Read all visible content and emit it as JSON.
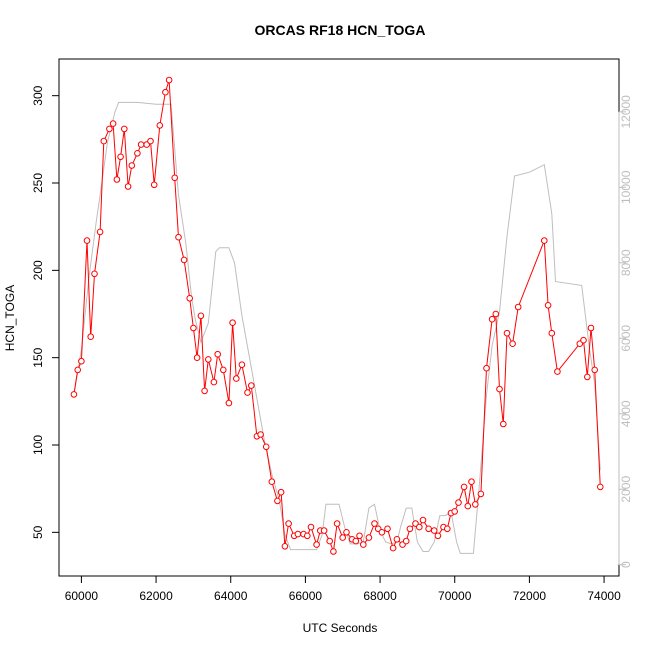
{
  "chart_data": {
    "type": "line",
    "title": "ORCAS RF18 HCN_TOGA",
    "xlabel": "UTC Seconds",
    "ylabel": "HCN_TOGA",
    "xlim": [
      59400,
      74400
    ],
    "ylim": [
      25,
      321
    ],
    "y2lim": [
      -300,
      13400
    ],
    "xticks": [
      60000,
      62000,
      64000,
      66000,
      68000,
      70000,
      72000,
      74000
    ],
    "yticks": [
      50,
      100,
      150,
      200,
      250,
      300
    ],
    "y2ticks": [
      0,
      2000,
      4000,
      6000,
      8000,
      10000,
      12000
    ],
    "colors": {
      "primary": "#ff0000",
      "secondary": "#bebebe",
      "marker_fill": "#ffffff"
    },
    "series": [
      {
        "axis": "left",
        "style": "line+points",
        "points": [
          [
            59800,
            129
          ],
          [
            59900,
            143
          ],
          [
            60000,
            148
          ],
          [
            60150,
            217
          ],
          [
            60250,
            162
          ],
          [
            60350,
            198
          ],
          [
            60500,
            222
          ],
          [
            60600,
            274
          ],
          [
            60750,
            281
          ],
          [
            60850,
            284
          ],
          [
            60950,
            252
          ],
          [
            61050,
            265
          ],
          [
            61150,
            281
          ],
          [
            61250,
            248
          ],
          [
            61350,
            260
          ],
          [
            61500,
            267
          ],
          [
            61600,
            272
          ],
          [
            61750,
            272
          ],
          [
            61850,
            274
          ],
          [
            61950,
            249
          ],
          [
            62100,
            283
          ],
          [
            62250,
            302
          ],
          [
            62350,
            309
          ],
          [
            62500,
            253
          ],
          [
            62600,
            219
          ],
          [
            62750,
            206
          ],
          [
            62900,
            184
          ],
          [
            63000,
            167
          ],
          [
            63100,
            150
          ],
          [
            63200,
            174
          ],
          [
            63300,
            131
          ],
          [
            63400,
            149
          ],
          [
            63550,
            136
          ],
          [
            63650,
            152
          ],
          [
            63800,
            143
          ],
          [
            63950,
            124
          ],
          [
            64050,
            170
          ],
          [
            64150,
            138
          ],
          [
            64300,
            146
          ],
          [
            64450,
            130
          ],
          [
            64550,
            134
          ],
          [
            64700,
            105
          ],
          [
            64800,
            106
          ],
          [
            64950,
            99
          ],
          [
            65100,
            79
          ],
          [
            65250,
            68
          ],
          [
            65350,
            73
          ],
          [
            65450,
            42
          ],
          [
            65550,
            55
          ],
          [
            65700,
            48
          ],
          [
            65800,
            49
          ],
          [
            65950,
            49
          ],
          [
            66050,
            48
          ],
          [
            66150,
            53
          ],
          [
            66300,
            43
          ],
          [
            66400,
            51
          ],
          [
            66500,
            51
          ],
          [
            66650,
            45
          ],
          [
            66750,
            39
          ],
          [
            66850,
            55
          ],
          [
            67000,
            47
          ],
          [
            67100,
            50
          ],
          [
            67250,
            46
          ],
          [
            67350,
            45
          ],
          [
            67450,
            48
          ],
          [
            67550,
            43
          ],
          [
            67700,
            47
          ],
          [
            67850,
            55
          ],
          [
            67950,
            52
          ],
          [
            68050,
            50
          ],
          [
            68200,
            52
          ],
          [
            68350,
            41
          ],
          [
            68450,
            46
          ],
          [
            68600,
            43
          ],
          [
            68700,
            45
          ],
          [
            68800,
            52
          ],
          [
            68950,
            55
          ],
          [
            69050,
            53
          ],
          [
            69150,
            57
          ],
          [
            69300,
            52
          ],
          [
            69450,
            51
          ],
          [
            69550,
            48
          ],
          [
            69700,
            53
          ],
          [
            69800,
            52
          ],
          [
            69900,
            61
          ],
          [
            70000,
            62
          ],
          [
            70100,
            67
          ],
          [
            70250,
            76
          ],
          [
            70350,
            65
          ],
          [
            70450,
            79
          ],
          [
            70550,
            66
          ],
          [
            70700,
            72
          ],
          [
            70850,
            144
          ],
          [
            71000,
            172
          ],
          [
            71100,
            175
          ],
          [
            71200,
            132
          ],
          [
            71300,
            112
          ],
          [
            71400,
            164
          ],
          [
            71550,
            158
          ],
          [
            71700,
            179
          ],
          [
            72400,
            217
          ],
          [
            72500,
            180
          ],
          [
            72600,
            164
          ],
          [
            72750,
            142
          ],
          [
            73350,
            158
          ],
          [
            73450,
            160
          ],
          [
            73550,
            139
          ],
          [
            73650,
            167
          ],
          [
            73750,
            143
          ],
          [
            73900,
            76
          ]
        ]
      },
      {
        "axis": "right",
        "style": "line",
        "points": [
          [
            59800,
            4500
          ],
          [
            60000,
            5700
          ],
          [
            60200,
            7600
          ],
          [
            60400,
            9100
          ],
          [
            60500,
            9800
          ],
          [
            60700,
            11200
          ],
          [
            60900,
            12000
          ],
          [
            61000,
            12250
          ],
          [
            61500,
            12250
          ],
          [
            62000,
            12200
          ],
          [
            62400,
            12200
          ],
          [
            62600,
            9800
          ],
          [
            62800,
            8500
          ],
          [
            62950,
            7100
          ],
          [
            63050,
            6500
          ],
          [
            63200,
            5900
          ],
          [
            63400,
            6400
          ],
          [
            63600,
            8300
          ],
          [
            63700,
            8400
          ],
          [
            63950,
            8400
          ],
          [
            64100,
            8000
          ],
          [
            64300,
            6600
          ],
          [
            64500,
            5500
          ],
          [
            64700,
            4400
          ],
          [
            64900,
            3300
          ],
          [
            65100,
            2400
          ],
          [
            65300,
            1700
          ],
          [
            65450,
            800
          ],
          [
            65600,
            400
          ],
          [
            65800,
            400
          ],
          [
            66000,
            400
          ],
          [
            66200,
            400
          ],
          [
            66300,
            400
          ],
          [
            66450,
            800
          ],
          [
            66550,
            1600
          ],
          [
            66700,
            1600
          ],
          [
            66900,
            1600
          ],
          [
            67050,
            1000
          ],
          [
            67200,
            550
          ],
          [
            67400,
            550
          ],
          [
            67550,
            600
          ],
          [
            67700,
            1500
          ],
          [
            67850,
            1600
          ],
          [
            68000,
            900
          ],
          [
            68150,
            600
          ],
          [
            68300,
            550
          ],
          [
            68450,
            600
          ],
          [
            68550,
            1000
          ],
          [
            68700,
            1500
          ],
          [
            68850,
            1500
          ],
          [
            69000,
            600
          ],
          [
            69150,
            350
          ],
          [
            69300,
            350
          ],
          [
            69450,
            600
          ],
          [
            69600,
            1300
          ],
          [
            69750,
            1300
          ],
          [
            69900,
            1400
          ],
          [
            70050,
            600
          ],
          [
            70150,
            300
          ],
          [
            70300,
            300
          ],
          [
            70500,
            300
          ],
          [
            70650,
            2000
          ],
          [
            70850,
            4500
          ],
          [
            71000,
            5800
          ],
          [
            71200,
            6700
          ],
          [
            71400,
            8700
          ],
          [
            71600,
            10300
          ],
          [
            72000,
            10400
          ],
          [
            72400,
            10600
          ],
          [
            72600,
            9300
          ],
          [
            72700,
            7500
          ],
          [
            73400,
            7400
          ],
          [
            73600,
            5800
          ],
          [
            73750,
            4800
          ],
          [
            73900,
            2500
          ]
        ]
      }
    ]
  }
}
